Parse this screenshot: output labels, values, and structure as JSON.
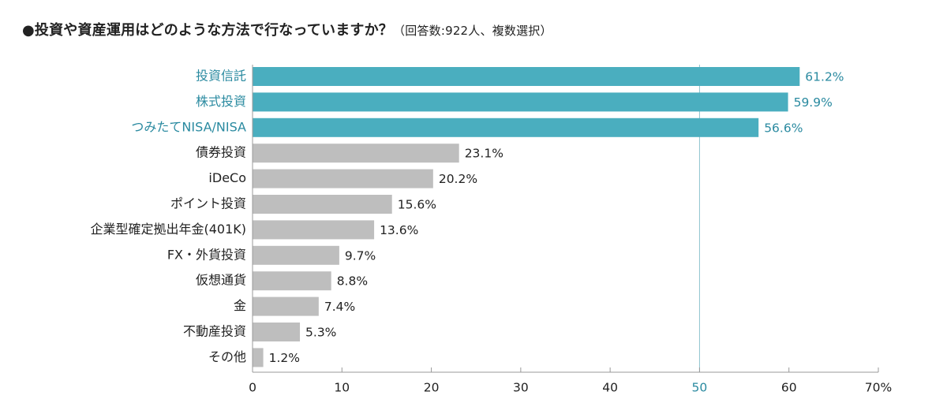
{
  "title": {
    "main": "●投資や資産運用はどのような方法で行なっていますか？",
    "note": "（回答数:922人、複数選択）"
  },
  "colors": {
    "highlight": "#4aaebf",
    "normal": "#bebebe",
    "highlight_text": "#2a8aa0",
    "text": "#222222",
    "axis": "#999999"
  },
  "chart_data": {
    "type": "bar",
    "orientation": "horizontal",
    "categories": [
      "投資信託",
      "株式投資",
      "つみたてNISA/NISA",
      "債券投資",
      "iDeCo",
      "ポイント投資",
      "企業型確定拠出年金(401K)",
      "FX・外貨投資",
      "仮想通貨",
      "金",
      "不動産投資",
      "その他"
    ],
    "values": [
      61.2,
      59.9,
      56.6,
      23.1,
      20.2,
      15.6,
      13.6,
      9.7,
      8.8,
      7.4,
      5.3,
      1.2
    ],
    "value_labels": [
      "61.2%",
      "59.9%",
      "56.6%",
      "23.1%",
      "20.2%",
      "15.6%",
      "13.6%",
      "9.7%",
      "8.8%",
      "7.4%",
      "5.3%",
      "1.2%"
    ],
    "highlighted": [
      true,
      true,
      true,
      false,
      false,
      false,
      false,
      false,
      false,
      false,
      false,
      false
    ],
    "xlim": [
      0,
      70
    ],
    "ticks": [
      0,
      10,
      20,
      30,
      40,
      50,
      60,
      70
    ],
    "tick_labels": [
      "0",
      "10",
      "20",
      "30",
      "40",
      "50",
      "60",
      "70%"
    ],
    "highlight_tick": 50,
    "reference_line": 50,
    "grid": false
  }
}
